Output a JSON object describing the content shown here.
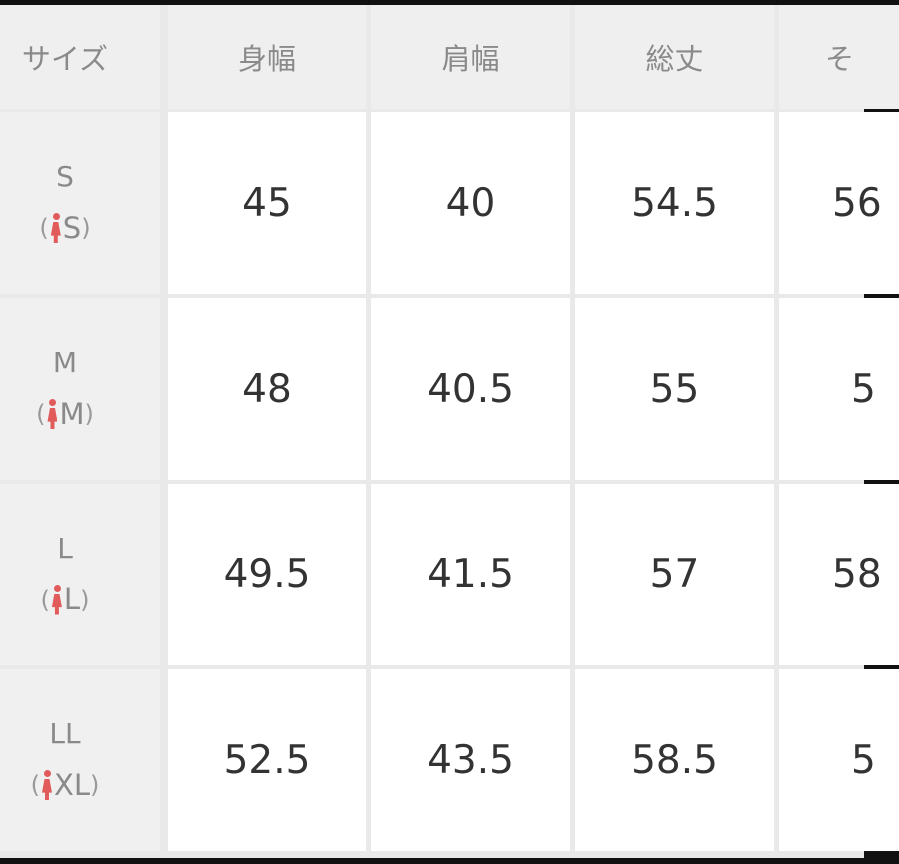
{
  "headers": [
    "サイズ",
    "身幅",
    "肩幅",
    "総丈",
    "そ"
  ],
  "rows": [
    {
      "size": "S",
      "sub": "S",
      "values": [
        "45",
        "40",
        "54.5",
        "56"
      ]
    },
    {
      "size": "M",
      "sub": "M",
      "values": [
        "48",
        "40.5",
        "55",
        "5"
      ]
    },
    {
      "size": "L",
      "sub": "L",
      "values": [
        "49.5",
        "41.5",
        "57",
        "58"
      ]
    },
    {
      "size": "LL",
      "sub": "XL",
      "values": [
        "52.5",
        "43.5",
        "58.5",
        "5"
      ]
    }
  ],
  "icons": {
    "women": "woman-figure-icon"
  },
  "colors": {
    "accent": "#e15b5b",
    "header_bg": "#efefef",
    "cell_bg": "#ffffff"
  }
}
